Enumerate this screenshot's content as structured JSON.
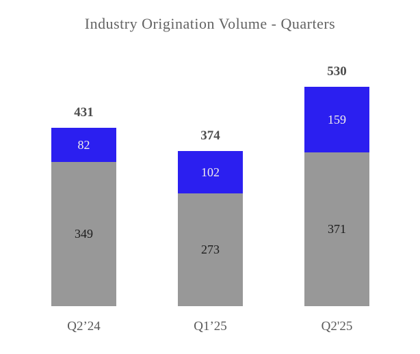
{
  "chart_data": {
    "type": "bar",
    "stacked": true,
    "title": "Industry Origination Volume - Quarters",
    "categories": [
      "Q2’24",
      "Q1’25",
      "Q2'25"
    ],
    "series": [
      {
        "name": "gray-segment",
        "color": "#989898",
        "label_color": "#1c1c1c",
        "values": [
          349,
          273,
          371
        ]
      },
      {
        "name": "blue-segment",
        "color": "#2b1ff0",
        "label_color": "#f3efec",
        "values": [
          82,
          102,
          159
        ]
      }
    ],
    "totals": [
      431,
      374,
      530
    ],
    "legend": "none",
    "grid": false,
    "axes_visible": false
  },
  "colors": {
    "background": "#ffffff",
    "title_text": "#636363",
    "total_text": "#4d4d4d",
    "xlabel_text": "#595959"
  }
}
